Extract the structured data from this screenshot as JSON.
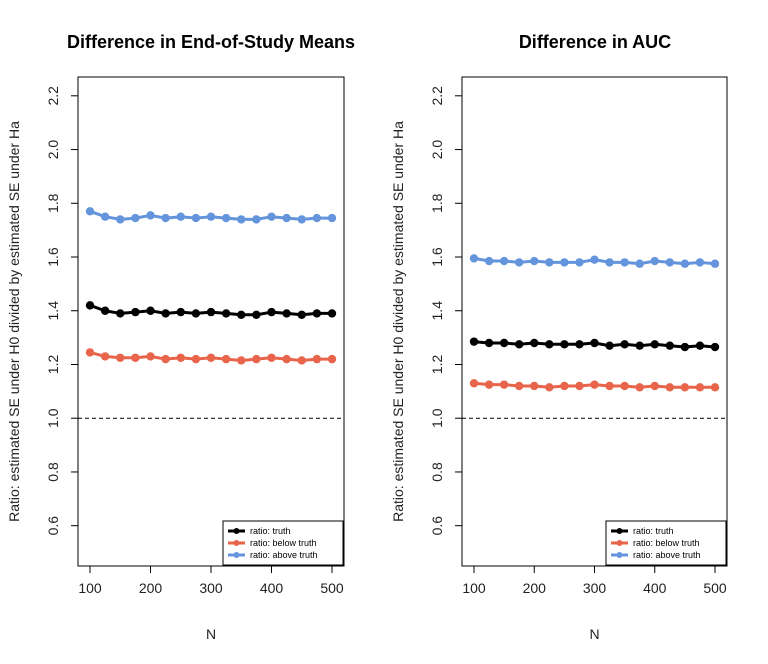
{
  "chart_data": [
    {
      "type": "line",
      "title": "Difference in End-of-Study Means",
      "xlabel": "N",
      "ylabel": "Ratio: estimated SE under H0 divided by estimated SE under Ha",
      "xlim": [
        100,
        500
      ],
      "ylim": [
        0.45,
        2.27
      ],
      "xticks": [
        100,
        200,
        300,
        400,
        500
      ],
      "yticks": [
        0.6,
        0.8,
        1.0,
        1.2,
        1.4,
        1.6,
        1.8,
        2.0,
        2.2
      ],
      "xtick_labels": [
        "100",
        "200",
        "300",
        "400",
        "500"
      ],
      "ytick_labels": [
        "0.6",
        "0.8",
        "1.0",
        "1.2",
        "1.4",
        "1.6",
        "1.8",
        "2.0",
        "2.2"
      ],
      "reference_line": 1.0,
      "legend_position": "bottom-right",
      "x": [
        100,
        125,
        150,
        175,
        200,
        225,
        250,
        275,
        300,
        325,
        350,
        375,
        400,
        425,
        450,
        475,
        500
      ],
      "series": [
        {
          "name": "ratio: truth",
          "color": "#000000",
          "values": [
            1.42,
            1.4,
            1.39,
            1.395,
            1.4,
            1.39,
            1.395,
            1.39,
            1.395,
            1.39,
            1.385,
            1.385,
            1.395,
            1.39,
            1.385,
            1.39,
            1.39
          ]
        },
        {
          "name": "ratio: below truth",
          "color": "#E8644A",
          "values": [
            1.245,
            1.23,
            1.225,
            1.225,
            1.23,
            1.22,
            1.225,
            1.22,
            1.225,
            1.22,
            1.215,
            1.22,
            1.225,
            1.22,
            1.215,
            1.22,
            1.22
          ]
        },
        {
          "name": "ratio: above truth",
          "color": "#6495DC",
          "values": [
            1.77,
            1.75,
            1.74,
            1.745,
            1.755,
            1.745,
            1.75,
            1.745,
            1.75,
            1.745,
            1.74,
            1.74,
            1.75,
            1.745,
            1.74,
            1.745,
            1.745
          ]
        }
      ]
    },
    {
      "type": "line",
      "title": "Difference in AUC",
      "xlabel": "N",
      "ylabel": "Ratio: estimated SE under H0 divided by estimated SE under Ha",
      "xlim": [
        100,
        500
      ],
      "ylim": [
        0.45,
        2.27
      ],
      "xticks": [
        100,
        200,
        300,
        400,
        500
      ],
      "yticks": [
        0.6,
        0.8,
        1.0,
        1.2,
        1.4,
        1.6,
        1.8,
        2.0,
        2.2
      ],
      "xtick_labels": [
        "100",
        "200",
        "300",
        "400",
        "500"
      ],
      "ytick_labels": [
        "0.6",
        "0.8",
        "1.0",
        "1.2",
        "1.4",
        "1.6",
        "1.8",
        "2.0",
        "2.2"
      ],
      "reference_line": 1.0,
      "legend_position": "bottom-right",
      "x": [
        100,
        125,
        150,
        175,
        200,
        225,
        250,
        275,
        300,
        325,
        350,
        375,
        400,
        425,
        450,
        475,
        500
      ],
      "series": [
        {
          "name": "ratio: truth",
          "color": "#000000",
          "values": [
            1.285,
            1.28,
            1.28,
            1.275,
            1.28,
            1.275,
            1.275,
            1.275,
            1.28,
            1.27,
            1.275,
            1.27,
            1.275,
            1.27,
            1.265,
            1.27,
            1.265
          ]
        },
        {
          "name": "ratio: below truth",
          "color": "#E8644A",
          "values": [
            1.13,
            1.125,
            1.125,
            1.12,
            1.12,
            1.115,
            1.12,
            1.12,
            1.125,
            1.12,
            1.12,
            1.115,
            1.12,
            1.115,
            1.115,
            1.115,
            1.115
          ]
        },
        {
          "name": "ratio: above truth",
          "color": "#6495DC",
          "values": [
            1.595,
            1.585,
            1.585,
            1.58,
            1.585,
            1.58,
            1.58,
            1.58,
            1.59,
            1.58,
            1.58,
            1.575,
            1.585,
            1.58,
            1.575,
            1.58,
            1.575
          ]
        }
      ]
    }
  ]
}
